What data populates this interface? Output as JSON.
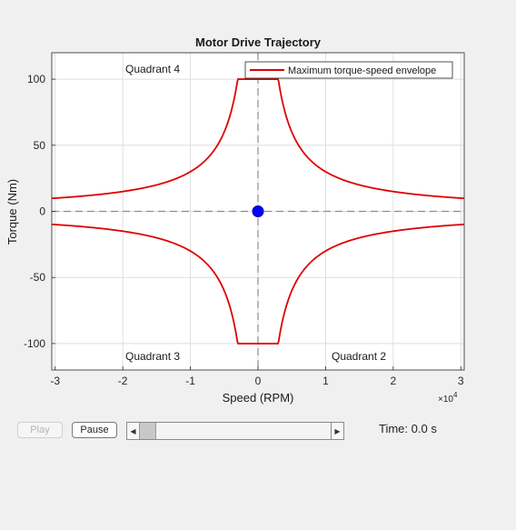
{
  "chart_data": {
    "type": "line",
    "title": "Motor Drive Trajectory",
    "xlabel": "Speed (RPM)",
    "ylabel": "Torque (Nm)",
    "x_exponent_label": "×10",
    "x_exponent": "4",
    "xlim": [
      -30500,
      30500
    ],
    "ylim": [
      -120,
      120
    ],
    "xticks": [
      -30000,
      -20000,
      -10000,
      0,
      10000,
      20000,
      30000
    ],
    "xtick_labels": [
      "-3",
      "-2",
      "-1",
      "0",
      "1",
      "2",
      "3"
    ],
    "yticks": [
      -100,
      -50,
      0,
      50,
      100
    ],
    "ytick_labels": [
      "-100",
      "-50",
      "0",
      "50",
      "100"
    ],
    "grid": true,
    "legend_position": "top-right",
    "series": [
      {
        "name": "Maximum torque-speed envelope",
        "color": "#e00000",
        "max_torque": 100,
        "corner_speed": 3000,
        "power_constant": 300000
      }
    ],
    "operating_point": {
      "speed": 0,
      "torque": 0,
      "color": "#0000ff"
    },
    "annotations": [
      "Quadrant 4",
      "Quadrant 3",
      "Quadrant 2"
    ]
  },
  "controls": {
    "play_label": "Play",
    "pause_label": "Pause",
    "slider_value": 0,
    "time_text": "Time: 0.0 s"
  }
}
